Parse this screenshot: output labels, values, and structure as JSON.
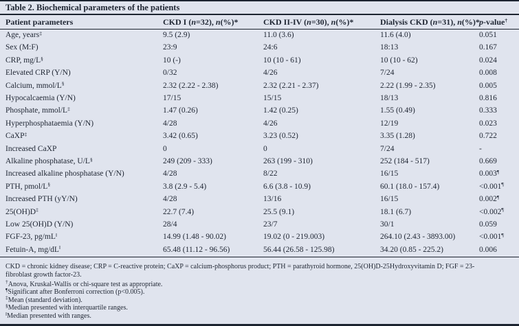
{
  "table": {
    "title": "Table 2. Biochemical parameters of the patients",
    "columns": [
      {
        "segs": [
          {
            "t": "Patient parameters"
          }
        ]
      },
      {
        "segs": [
          {
            "t": "CKD I ("
          },
          {
            "t": "n",
            "i": true
          },
          {
            "t": "=32), "
          },
          {
            "t": "n",
            "i": true
          },
          {
            "t": "(%)*"
          }
        ]
      },
      {
        "segs": [
          {
            "t": "CKD II-IV ("
          },
          {
            "t": "n",
            "i": true
          },
          {
            "t": "=30), "
          },
          {
            "t": "n",
            "i": true
          },
          {
            "t": "(%)*"
          }
        ]
      },
      {
        "segs": [
          {
            "t": "Dialysis CKD ("
          },
          {
            "t": "n",
            "i": true
          },
          {
            "t": "=31), "
          },
          {
            "t": "n",
            "i": true
          },
          {
            "t": "(%)*"
          }
        ]
      },
      {
        "segs": [
          {
            "t": "p",
            "i": true
          },
          {
            "t": "-value"
          },
          {
            "t": "†",
            "sup": true
          }
        ]
      }
    ],
    "rows": [
      {
        "param": "Age, years",
        "sup": "‡",
        "values": [
          "9.5 (2.9)",
          "11.0 (3.6)",
          "11.6 (4.0)"
        ],
        "p": "0.051",
        "p_sup": ""
      },
      {
        "param": "Sex (M:F)",
        "sup": "",
        "values": [
          "23:9",
          "24:6",
          "18:13"
        ],
        "p": "0.167",
        "p_sup": ""
      },
      {
        "param": "CRP, mg/L",
        "sup": "§",
        "values": [
          "10 (-)",
          "10 (10 - 61)",
          "10 (10 - 62)"
        ],
        "p": "0.024",
        "p_sup": ""
      },
      {
        "param": "Elevated CRP (Y/N)",
        "sup": "",
        "values": [
          "0/32",
          "4/26",
          "7/24"
        ],
        "p": "0.008",
        "p_sup": ""
      },
      {
        "param": "Calcium, mmol/L",
        "sup": "§",
        "values": [
          "2.32 (2.22 - 2.38)",
          "2.32 (2.21 - 2.37)",
          "2.22 (1.99 - 2.35)"
        ],
        "p": "0.005",
        "p_sup": ""
      },
      {
        "param": "Hypocalcaemia (Y/N)",
        "sup": "",
        "values": [
          "17/15",
          "15/15",
          "18/13"
        ],
        "p": "0.816",
        "p_sup": ""
      },
      {
        "param": "Phosphate, mmol/L",
        "sup": "‡",
        "values": [
          "1.47 (0.26)",
          "1.42 (0.25)",
          "1.55 (0.49)"
        ],
        "p": "0.333",
        "p_sup": ""
      },
      {
        "param": "Hyperphosphataemia (Y/N)",
        "sup": "",
        "values": [
          "4/28",
          "4/26",
          "12/19"
        ],
        "p": "0.023",
        "p_sup": ""
      },
      {
        "param": "CaXP",
        "sup": "‡",
        "values": [
          "3.42 (0.65)",
          "3.23 (0.52)",
          "3.35 (1.28)"
        ],
        "p": "0.722",
        "p_sup": ""
      },
      {
        "param": "Increased CaXP",
        "sup": "",
        "values": [
          "0",
          "0",
          "7/24"
        ],
        "p": "-",
        "p_sup": ""
      },
      {
        "param": "Alkaline phosphatase, U/L",
        "sup": "§",
        "values": [
          "249 (209 - 333)",
          "263 (199 - 310)",
          "252 (184 - 517)"
        ],
        "p": "0.669",
        "p_sup": ""
      },
      {
        "param": "Increased alkaline phosphatase (Y/N)",
        "sup": "",
        "values": [
          "4/28",
          "8/22",
          "16/15"
        ],
        "p": "0.003",
        "p_sup": "¶"
      },
      {
        "param": "PTH, pmol/L",
        "sup": "§",
        "values": [
          "3.8 (2.9 - 5.4)",
          "6.6 (3.8 - 10.9)",
          "60.1 (18.0 - 157.4)"
        ],
        "p": "<0.001",
        "p_sup": "¶"
      },
      {
        "param": "Increased PTH (yY/N)",
        "sup": "",
        "values": [
          "4/28",
          "13/16",
          "16/15"
        ],
        "p": "0.002",
        "p_sup": "¶"
      },
      {
        "param": "25(OH)D",
        "sup": "‡",
        "values": [
          "22.7 (7.4)",
          "25.5 (9.1)",
          "18.1 (6.7)"
        ],
        "p": "<0.002",
        "p_sup": "¶"
      },
      {
        "param": "Low 25(OH)D (Y/N)",
        "sup": "",
        "values": [
          "28/4",
          "23/7",
          "30/1"
        ],
        "p": "0.059",
        "p_sup": ""
      },
      {
        "param": "FGF-23, pg/mL",
        "sup": "‖",
        "values": [
          "14.99 (1.48 - 90.02)",
          "19.02 (0 - 219.003)",
          "264.10 (2.43 - 3893.00)"
        ],
        "p": "<0.001",
        "p_sup": "¶"
      },
      {
        "param": "Fetuin-A, mg/dL",
        "sup": "‖",
        "values": [
          "65.48 (11.12 - 96.56)",
          "56.44 (26.58 - 125.98)",
          "34.20 (0.85 - 225.2)"
        ],
        "p": "0.006",
        "p_sup": ""
      }
    ]
  },
  "footnotes": {
    "abbreviations": "CKD = chronic kidney disease; CRP = C-reactive protein; CaXP = calcium-phosphorus product; PTH = parathyroid hormone, 25(OH)D-25Hydroxyvitamin D; FGF = 23-fibroblast growth factor-23.",
    "notes": [
      {
        "marker": "†",
        "text": "Anova, Kruskal-Wallis or chi-square test as appropriate."
      },
      {
        "marker": "¶",
        "text": "Significant after Bonferroni correction (p<0.005)."
      },
      {
        "marker": "‡",
        "text": "Mean (standard deviation)."
      },
      {
        "marker": "§",
        "text": "Median presented with interquartile ranges."
      },
      {
        "marker": "‖",
        "text": "Median presented with ranges."
      }
    ]
  },
  "colors": {
    "background": "#e0e4ee",
    "text": "#1f2633",
    "rule": "#1c2430"
  }
}
